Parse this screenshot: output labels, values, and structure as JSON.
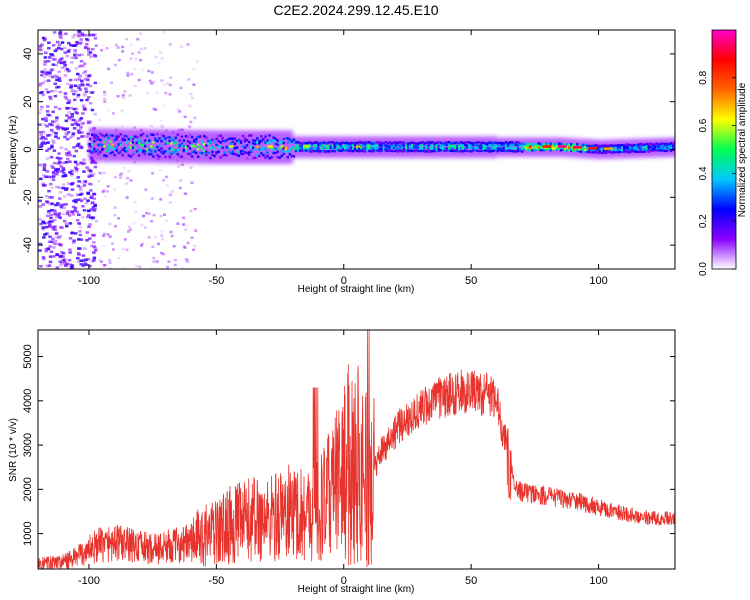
{
  "figure": {
    "title": "C2E2.2024.299.12.45.E10"
  },
  "chart_data": [
    {
      "type": "heatmap",
      "xlabel": "Height of straight line (km)",
      "ylabel": "Frequency (Hz)",
      "xlim": [
        -120,
        130
      ],
      "ylim": [
        -50,
        50
      ],
      "xticks": [
        -100,
        -50,
        0,
        50,
        100
      ],
      "yticks": [
        -40,
        -20,
        0,
        20,
        40
      ],
      "colorbar": {
        "label": "Normalized spectral amplitude",
        "range": [
          0,
          1
        ],
        "ticks": [
          "0.0",
          "0.2",
          "0.4",
          "0.6",
          "0.8"
        ],
        "colors": [
          "#ffffff",
          "#8a00ff",
          "#0000ff",
          "#00c8ff",
          "#00ff50",
          "#ffff00",
          "#ff6400",
          "#ff0000",
          "#ff00c8"
        ]
      },
      "ridge": [
        {
          "x": -100,
          "y": 2
        },
        {
          "x": -50,
          "y": 1
        },
        {
          "x": 0,
          "y": 1
        },
        {
          "x": 50,
          "y": 1
        },
        {
          "x": 85,
          "y": 1
        },
        {
          "x": 100,
          "y": 0
        },
        {
          "x": 130,
          "y": 1
        }
      ]
    },
    {
      "type": "line",
      "xlabel": "Height of straight line (km)",
      "ylabel": "SNR (10 * v/v)",
      "xlim": [
        -120,
        130
      ],
      "ylim": [
        200,
        5600
      ],
      "xticks": [
        -100,
        -50,
        0,
        50,
        100
      ],
      "yticks": [
        1000,
        2000,
        3000,
        4000,
        5000
      ],
      "color": "#e8332c",
      "series": [
        {
          "x": [
            -120,
            -110,
            -105,
            -100,
            -95,
            -90,
            -85,
            -80,
            -75,
            -70,
            -65,
            -60,
            -55,
            -50,
            -45,
            -40,
            -35,
            -30,
            -25,
            -20,
            -15,
            -10,
            -5,
            0,
            5,
            10,
            15,
            20,
            25,
            30,
            35,
            40,
            45,
            50,
            55,
            60,
            62,
            65,
            67,
            70,
            80,
            90,
            100,
            110,
            120,
            130
          ],
          "y": [
            300,
            350,
            450,
            650,
            750,
            800,
            750,
            700,
            650,
            700,
            750,
            800,
            950,
            1000,
            1200,
            1250,
            1350,
            1300,
            1450,
            1500,
            1450,
            1550,
            1950,
            2450,
            2700,
            2200,
            2900,
            3300,
            3600,
            3800,
            4000,
            4100,
            4200,
            4200,
            4150,
            4100,
            3300,
            3050,
            2000,
            1950,
            1850,
            1750,
            1600,
            1450,
            1350,
            1350
          ]
        }
      ]
    }
  ]
}
